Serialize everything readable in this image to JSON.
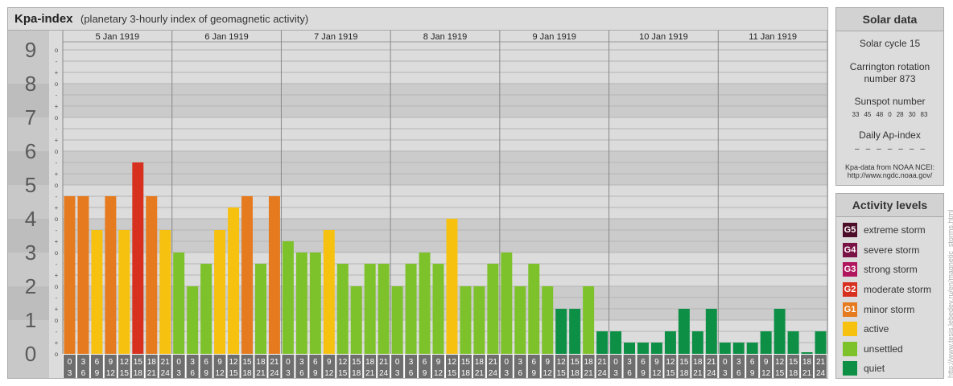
{
  "header": {
    "title": "Kpa-index",
    "subtitle": "(planetary 3-hourly index of geomagnetic activity)"
  },
  "chart_data": {
    "type": "bar",
    "ylim": [
      0,
      9
    ],
    "y_ticks": [
      "0",
      "1",
      "2",
      "3",
      "4",
      "5",
      "6",
      "7",
      "8",
      "9"
    ],
    "y_minor_labels": [
      "o",
      "-",
      "+"
    ],
    "days": [
      "5 Jan 1919",
      "6 Jan 1919",
      "7 Jan 1919",
      "8 Jan 1919",
      "9 Jan 1919",
      "10 Jan 1919",
      "11 Jan 1919"
    ],
    "hour_start": [
      "0",
      "3",
      "6",
      "9",
      "12",
      "15",
      "18",
      "21"
    ],
    "hour_end": [
      "3",
      "6",
      "9",
      "12",
      "15",
      "18",
      "21",
      "24"
    ],
    "values": [
      4.667,
      4.667,
      3.667,
      4.667,
      3.667,
      5.667,
      4.667,
      3.667,
      3.0,
      2.0,
      2.667,
      3.667,
      4.333,
      4.667,
      2.667,
      4.667,
      3.333,
      3.0,
      3.0,
      3.667,
      2.667,
      2.0,
      2.667,
      2.667,
      2.0,
      2.667,
      3.0,
      2.667,
      4.0,
      2.0,
      2.0,
      2.667,
      3.0,
      2.0,
      2.667,
      2.0,
      1.333,
      1.333,
      2.0,
      0.667,
      0.667,
      0.333,
      0.333,
      0.333,
      0.667,
      1.333,
      0.667,
      1.333,
      0.333,
      0.333,
      0.333,
      0.667,
      1.333,
      0.667,
      0.0,
      0.667
    ],
    "colors": {
      "quiet": "#0d8f45",
      "unsettled": "#7dc22a",
      "active": "#f7c10f",
      "minor": "#e57b1e",
      "moderate": "#d7301f"
    }
  },
  "solar": {
    "heading": "Solar data",
    "cycle": "Solar cycle 15",
    "carrington_1": "Carrington rotation",
    "carrington_2": "number 873",
    "sunspot_heading": "Sunspot number",
    "sunspots": [
      "33",
      "45",
      "48",
      "0",
      "28",
      "30",
      "83"
    ],
    "ap_heading": "Daily Ap-index",
    "ap": [
      "–",
      "–",
      "–",
      "–",
      "–",
      "–",
      "–"
    ],
    "credit_1": "Kpa-data from NOAA NCEI:",
    "credit_2": "http://www.ngdc.noaa.gov/"
  },
  "levels": {
    "heading": "Activity levels",
    "items": [
      {
        "badge": "G5",
        "label": "extreme storm",
        "color": "#4b0d2a"
      },
      {
        "badge": "G4",
        "label": "severe storm",
        "color": "#7a1345"
      },
      {
        "badge": "G3",
        "label": "strong storm",
        "color": "#b0155e"
      },
      {
        "badge": "G2",
        "label": "moderate storm",
        "color": "#d7301f"
      },
      {
        "badge": "G1",
        "label": "minor storm",
        "color": "#e57b1e"
      },
      {
        "badge": "",
        "label": "active",
        "color": "#f7c10f"
      },
      {
        "badge": "",
        "label": "unsettled",
        "color": "#7dc22a"
      },
      {
        "badge": "",
        "label": "quiet",
        "color": "#0d8f45"
      }
    ]
  },
  "side_credit": "http://www.tesis.lebedev.ru/en/magnetic_storms.html"
}
